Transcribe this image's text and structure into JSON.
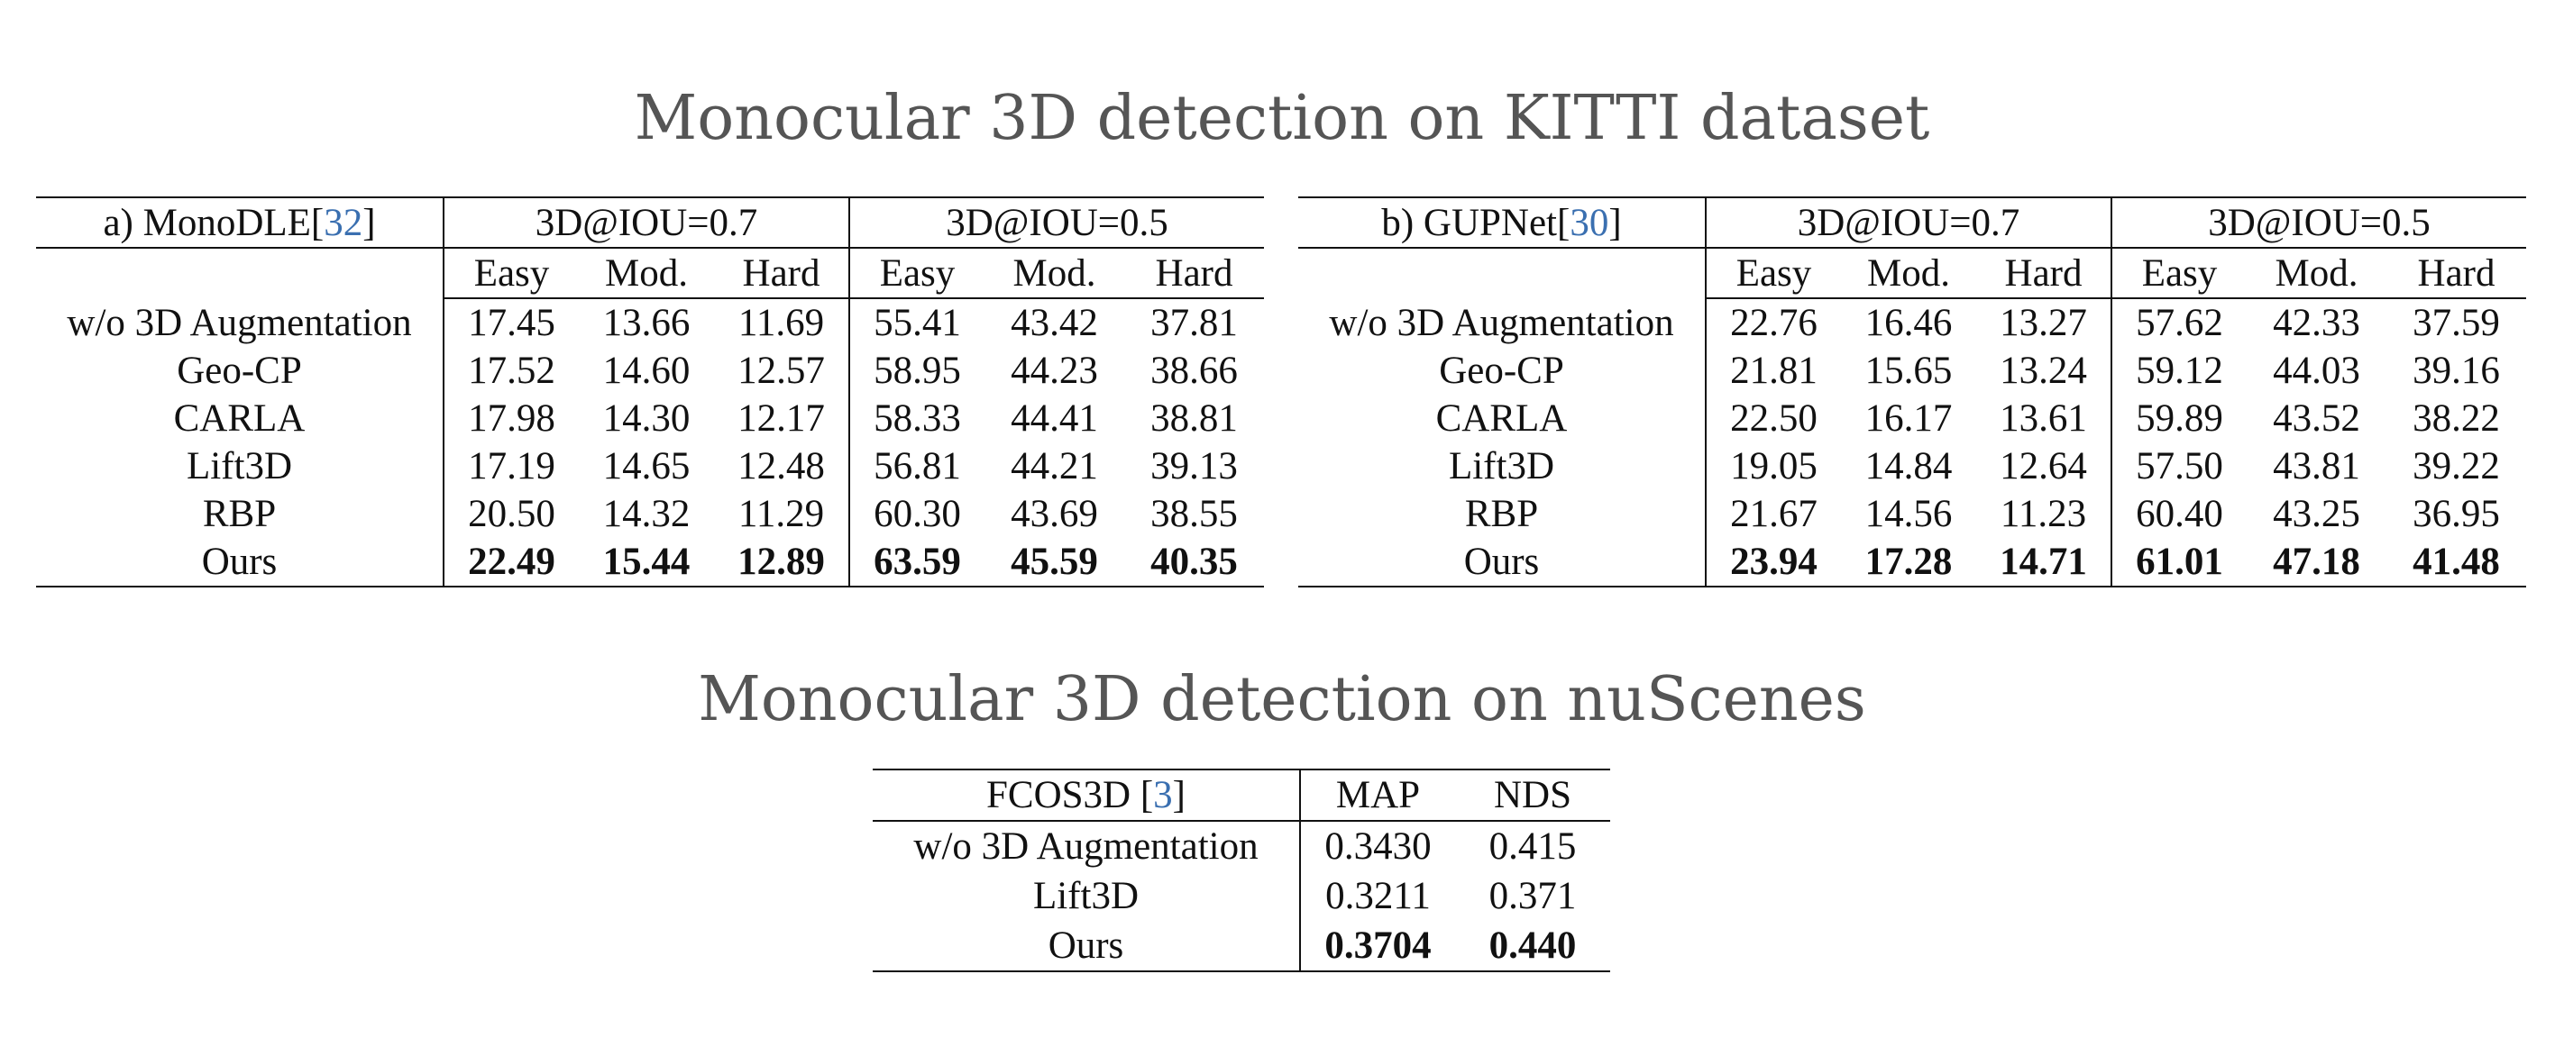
{
  "kitti_title": "Monocular 3D detection on KITTI dataset",
  "nuscenes_title": "Monocular 3D detection on nuScenes",
  "kitti_tables": [
    {
      "label": "a) MonoDLE[",
      "ref": "32",
      "label_end": "]",
      "group_headers": [
        "3D@IOU=0.7",
        "3D@IOU=0.5"
      ],
      "sub_headers": [
        "Easy",
        "Mod.",
        "Hard",
        "Easy",
        "Mod.",
        "Hard"
      ],
      "rows": [
        {
          "method": "w/o 3D Augmentation",
          "values": [
            "17.45",
            "13.66",
            "11.69",
            "55.41",
            "43.42",
            "37.81"
          ]
        },
        {
          "method": "Geo-CP",
          "values": [
            "17.52",
            "14.60",
            "12.57",
            "58.95",
            "44.23",
            "38.66"
          ]
        },
        {
          "method": "CARLA",
          "values": [
            "17.98",
            "14.30",
            "12.17",
            "58.33",
            "44.41",
            "38.81"
          ]
        },
        {
          "method": "Lift3D",
          "values": [
            "17.19",
            "14.65",
            "12.48",
            "56.81",
            "44.21",
            "39.13"
          ]
        },
        {
          "method": "RBP",
          "values": [
            "20.50",
            "14.32",
            "11.29",
            "60.30",
            "43.69",
            "38.55"
          ]
        },
        {
          "method": "Ours",
          "values": [
            "22.49",
            "15.44",
            "12.89",
            "63.59",
            "45.59",
            "40.35"
          ]
        }
      ]
    },
    {
      "label": "b) GUPNet[",
      "ref": "30",
      "label_end": "]",
      "group_headers": [
        "3D@IOU=0.7",
        "3D@IOU=0.5"
      ],
      "sub_headers": [
        "Easy",
        "Mod.",
        "Hard",
        "Easy",
        "Mod.",
        "Hard"
      ],
      "rows": [
        {
          "method": "w/o 3D Augmentation",
          "values": [
            "22.76",
            "16.46",
            "13.27",
            "57.62",
            "42.33",
            "37.59"
          ]
        },
        {
          "method": "Geo-CP",
          "values": [
            "21.81",
            "15.65",
            "13.24",
            "59.12",
            "44.03",
            "39.16"
          ]
        },
        {
          "method": "CARLA",
          "values": [
            "22.50",
            "16.17",
            "13.61",
            "59.89",
            "43.52",
            "38.22"
          ]
        },
        {
          "method": "Lift3D",
          "values": [
            "19.05",
            "14.84",
            "12.64",
            "57.50",
            "43.81",
            "39.22"
          ]
        },
        {
          "method": "RBP",
          "values": [
            "21.67",
            "14.56",
            "11.23",
            "60.40",
            "43.25",
            "36.95"
          ]
        },
        {
          "method": "Ours",
          "values": [
            "23.94",
            "17.28",
            "14.71",
            "61.01",
            "47.18",
            "41.48"
          ]
        }
      ]
    }
  ],
  "nuscenes_table": {
    "label": "FCOS3D [",
    "ref": "3",
    "label_end": "]",
    "headers": [
      "MAP",
      "NDS"
    ],
    "rows": [
      {
        "method": "w/o 3D Augmentation",
        "values": [
          "0.3430",
          "0.415"
        ]
      },
      {
        "method": "Lift3D",
        "values": [
          "0.3211",
          "0.371"
        ]
      },
      {
        "method": "Ours",
        "values": [
          "0.3704",
          "0.440"
        ]
      }
    ]
  }
}
